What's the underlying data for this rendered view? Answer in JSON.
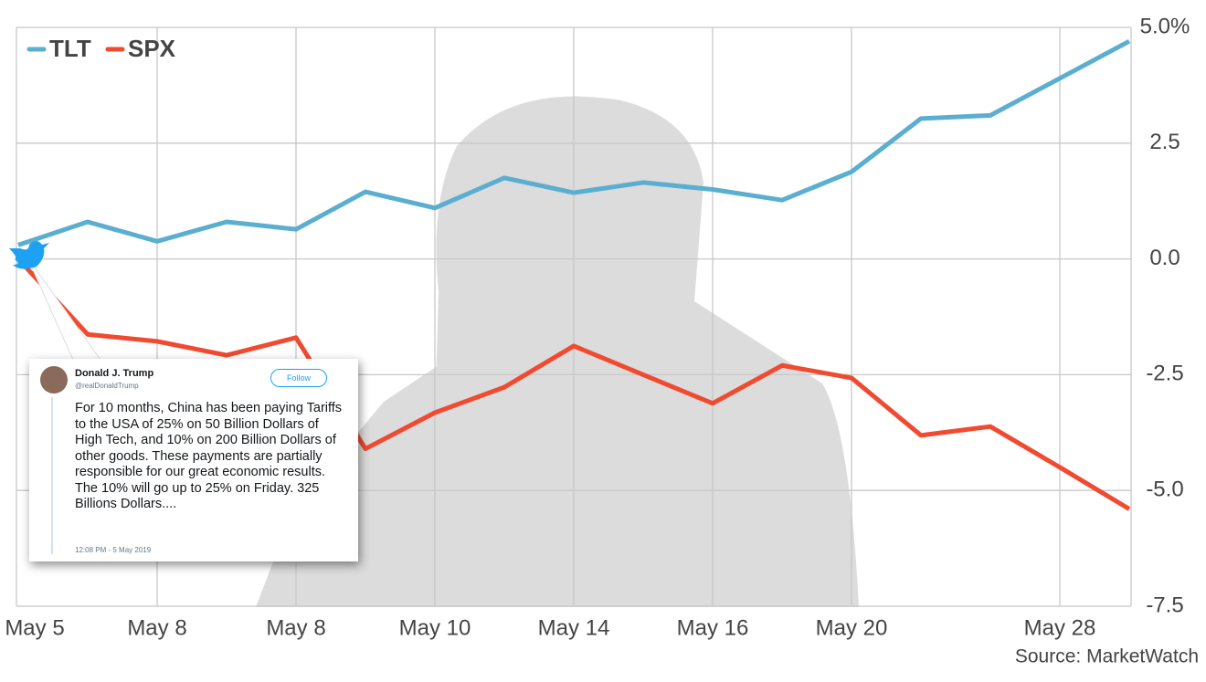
{
  "chart_data": {
    "type": "line",
    "categories": [
      "May 5",
      null,
      "May 8",
      null,
      "May 8",
      null,
      "May 10",
      null,
      "May 14",
      null,
      "May 16",
      null,
      "May 20",
      null,
      null,
      "May 28",
      null
    ],
    "series": [
      {
        "name": "TLT",
        "color": "#5aaed0",
        "values": [
          0.3,
          0.8,
          0.38,
          0.8,
          0.64,
          1.45,
          1.1,
          1.75,
          1.43,
          1.65,
          1.5,
          1.27,
          1.88,
          3.03,
          3.1,
          3.9,
          4.7
        ]
      },
      {
        "name": "SPX",
        "color": "#f04a30",
        "values": [
          0,
          -1.63,
          -1.78,
          -2.08,
          -1.7,
          -4.1,
          -3.32,
          -2.77,
          -1.88,
          -2.5,
          -3.12,
          -2.3,
          -2.57,
          -3.81,
          -3.62,
          -4.5,
          -5.4
        ]
      }
    ],
    "ylim": [
      -7.5,
      5
    ],
    "yticks": [
      {
        "value": 5,
        "label": "5.0%"
      },
      2.5,
      {
        "value": 0,
        "label": "0.0"
      },
      -2.5,
      {
        "value": -5,
        "label": "-5.0"
      },
      -7.5
    ],
    "grid": true,
    "legend": "top-left",
    "source": "Source: MarketWatch",
    "tweet": {
      "name": "Donald J. Trump",
      "handle": "@realDonaldTrump",
      "follow": "Follow",
      "text": "For 10 months, China has been paying Tariffs to the USA of 25% on 50 Billion Dollars of High Tech, and 10% on 200 Billion Dollars of other goods. These payments are partially responsible for our great economic results. The 10% will go up to 25% on Friday. 325 Billions Dollars....",
      "time": "12:08 PM - 5 May 2019"
    }
  }
}
